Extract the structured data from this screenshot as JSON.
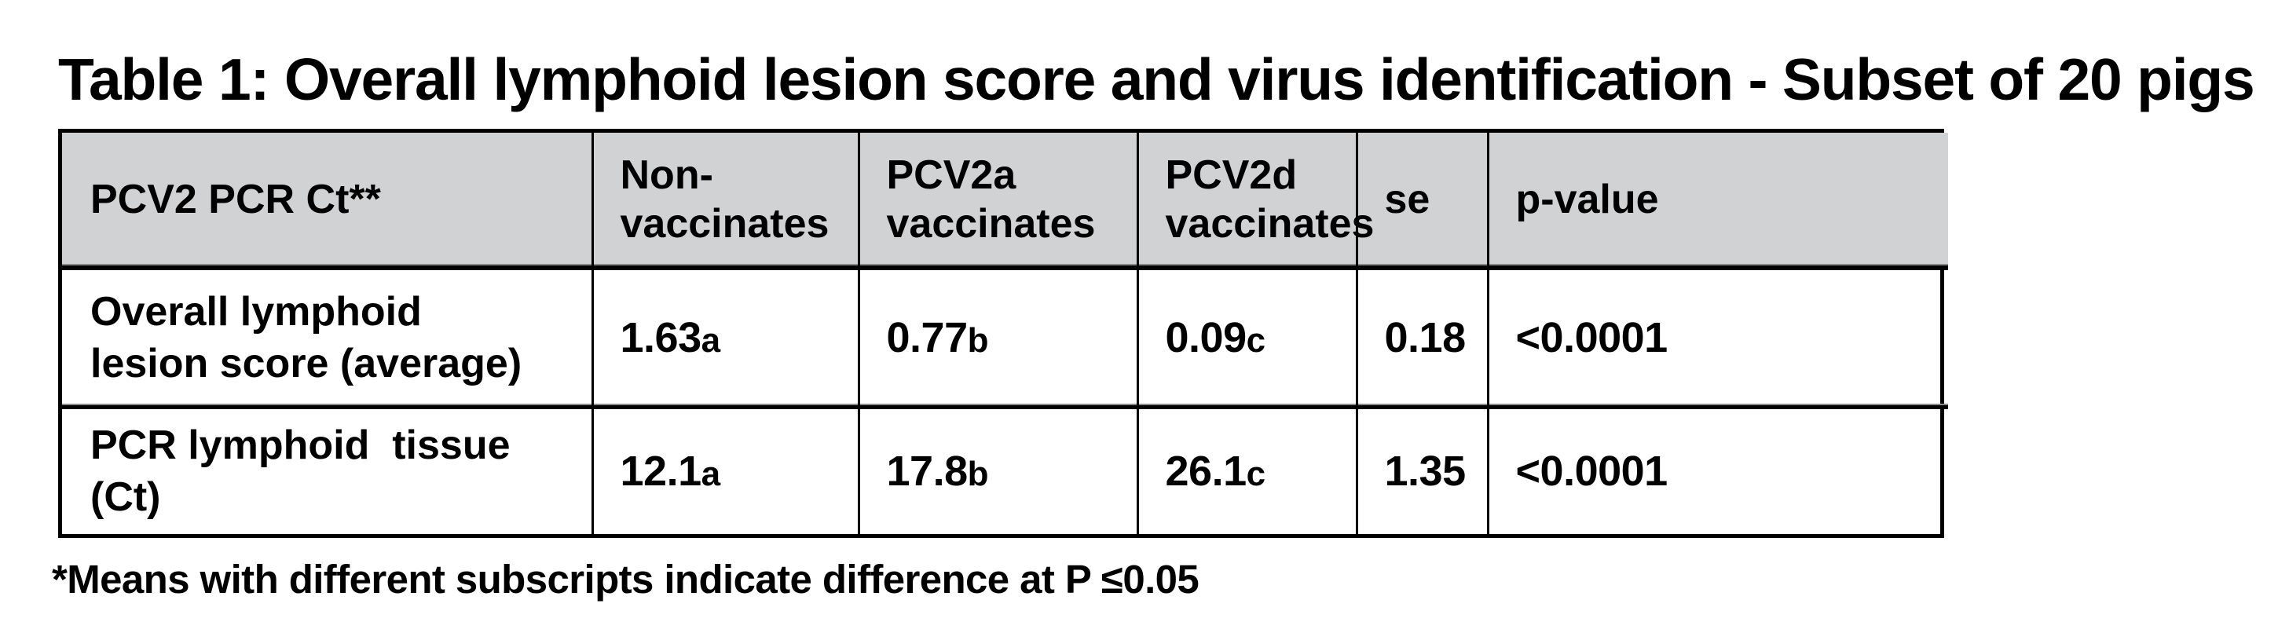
{
  "title": "Table 1: Overall lymphoid lesion score and virus identification - Subset of 20 pigs",
  "table": {
    "header_bg_color": "#d1d2d4",
    "columns": [
      {
        "line1": "PCV2 PCR Ct**",
        "line2": ""
      },
      {
        "line1": "Non-",
        "line2": "vaccinates"
      },
      {
        "line1": "PCV2a",
        "line2": "vaccinates"
      },
      {
        "line1": "PCV2d",
        "line2": "vaccinates"
      },
      {
        "line1": "se",
        "line2": ""
      },
      {
        "line1": "p-value",
        "line2": ""
      }
    ],
    "rows": [
      {
        "label_line1": "Overall lymphoid",
        "label_line2": "lesion score (average)",
        "non_vaccinates": {
          "value": "1.63",
          "subscript": "a"
        },
        "pcv2a_vaccinates": {
          "value": "0.77",
          "subscript": "b"
        },
        "pcv2d_vaccinates": {
          "value": "0.09",
          "subscript": "c"
        },
        "se": "0.18",
        "p_value": "<0.0001"
      },
      {
        "label_line1": "PCR lymphoid  tissue",
        "label_line2": "(Ct)",
        "non_vaccinates": {
          "value": "12.1",
          "subscript": "a"
        },
        "pcv2a_vaccinates": {
          "value": "17.8",
          "subscript": "b"
        },
        "pcv2d_vaccinates": {
          "value": "26.1",
          "subscript": "c"
        },
        "se": "1.35",
        "p_value": "<0.0001"
      }
    ]
  },
  "footnote": "*Means with different subscripts indicate difference at P ≤0.05"
}
